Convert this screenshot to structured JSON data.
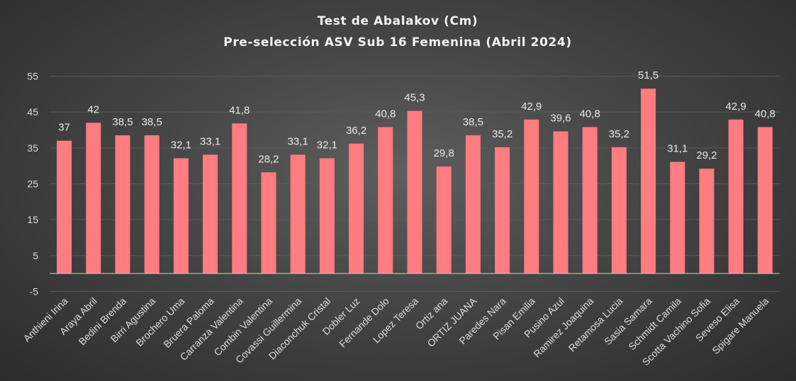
{
  "chart_data": {
    "type": "bar",
    "title": "Test de Abalakov (Cm)",
    "subtitle": "Pre-selección ASV Sub 16 Femenina (Abril 2024)",
    "categories": [
      "Anthieni Irina",
      "Araya Abril",
      "Bedini Brenda",
      "Birri Agustina",
      "Brochero Uma",
      "Bruera Paloma",
      "Carranza Valentina",
      "Combin Valentina",
      "Covassi Guillermina",
      "Diaconchuk Cristal",
      "Dobler Luz",
      "Fernande Dolo",
      "Lopez Teresa",
      "Ortiz ana",
      "ORTIZ JUANA",
      "Paredes Nara",
      "Pisan Emilia",
      "Pusino Azul",
      "Ramirez Joaquina",
      "Retamosa Lucia",
      "Sasia Samara",
      "Schmidt Camila",
      "Scotta Vachino Sofia",
      "Seveso Elisa",
      "Spigare Manuela"
    ],
    "values": [
      37,
      42,
      38.5,
      38.5,
      32.1,
      33.1,
      41.8,
      28.2,
      33.1,
      32.1,
      36.2,
      40.8,
      45.3,
      29.8,
      38.5,
      35.2,
      42.9,
      39.6,
      40.8,
      35.2,
      51.5,
      31.1,
      29.2,
      42.9,
      40.8
    ],
    "value_labels": [
      "37",
      "42",
      "38,5",
      "38,5",
      "32,1",
      "33,1",
      "41,8",
      "28,2",
      "33,1",
      "32,1",
      "36,2",
      "40,8",
      "45,3",
      "29,8",
      "38,5",
      "35,2",
      "42,9",
      "39,6",
      "40,8",
      "35,2",
      "51,5",
      "31,1",
      "29,2",
      "42,9",
      "40,8"
    ],
    "y_ticks": [
      -5,
      5,
      15,
      25,
      35,
      45,
      55
    ],
    "ylim": [
      -5,
      55
    ],
    "grid": true,
    "bar_color": "#ff7c80",
    "gridline_color": "#5a5a5a",
    "axis_color": "#bfbfbf"
  }
}
